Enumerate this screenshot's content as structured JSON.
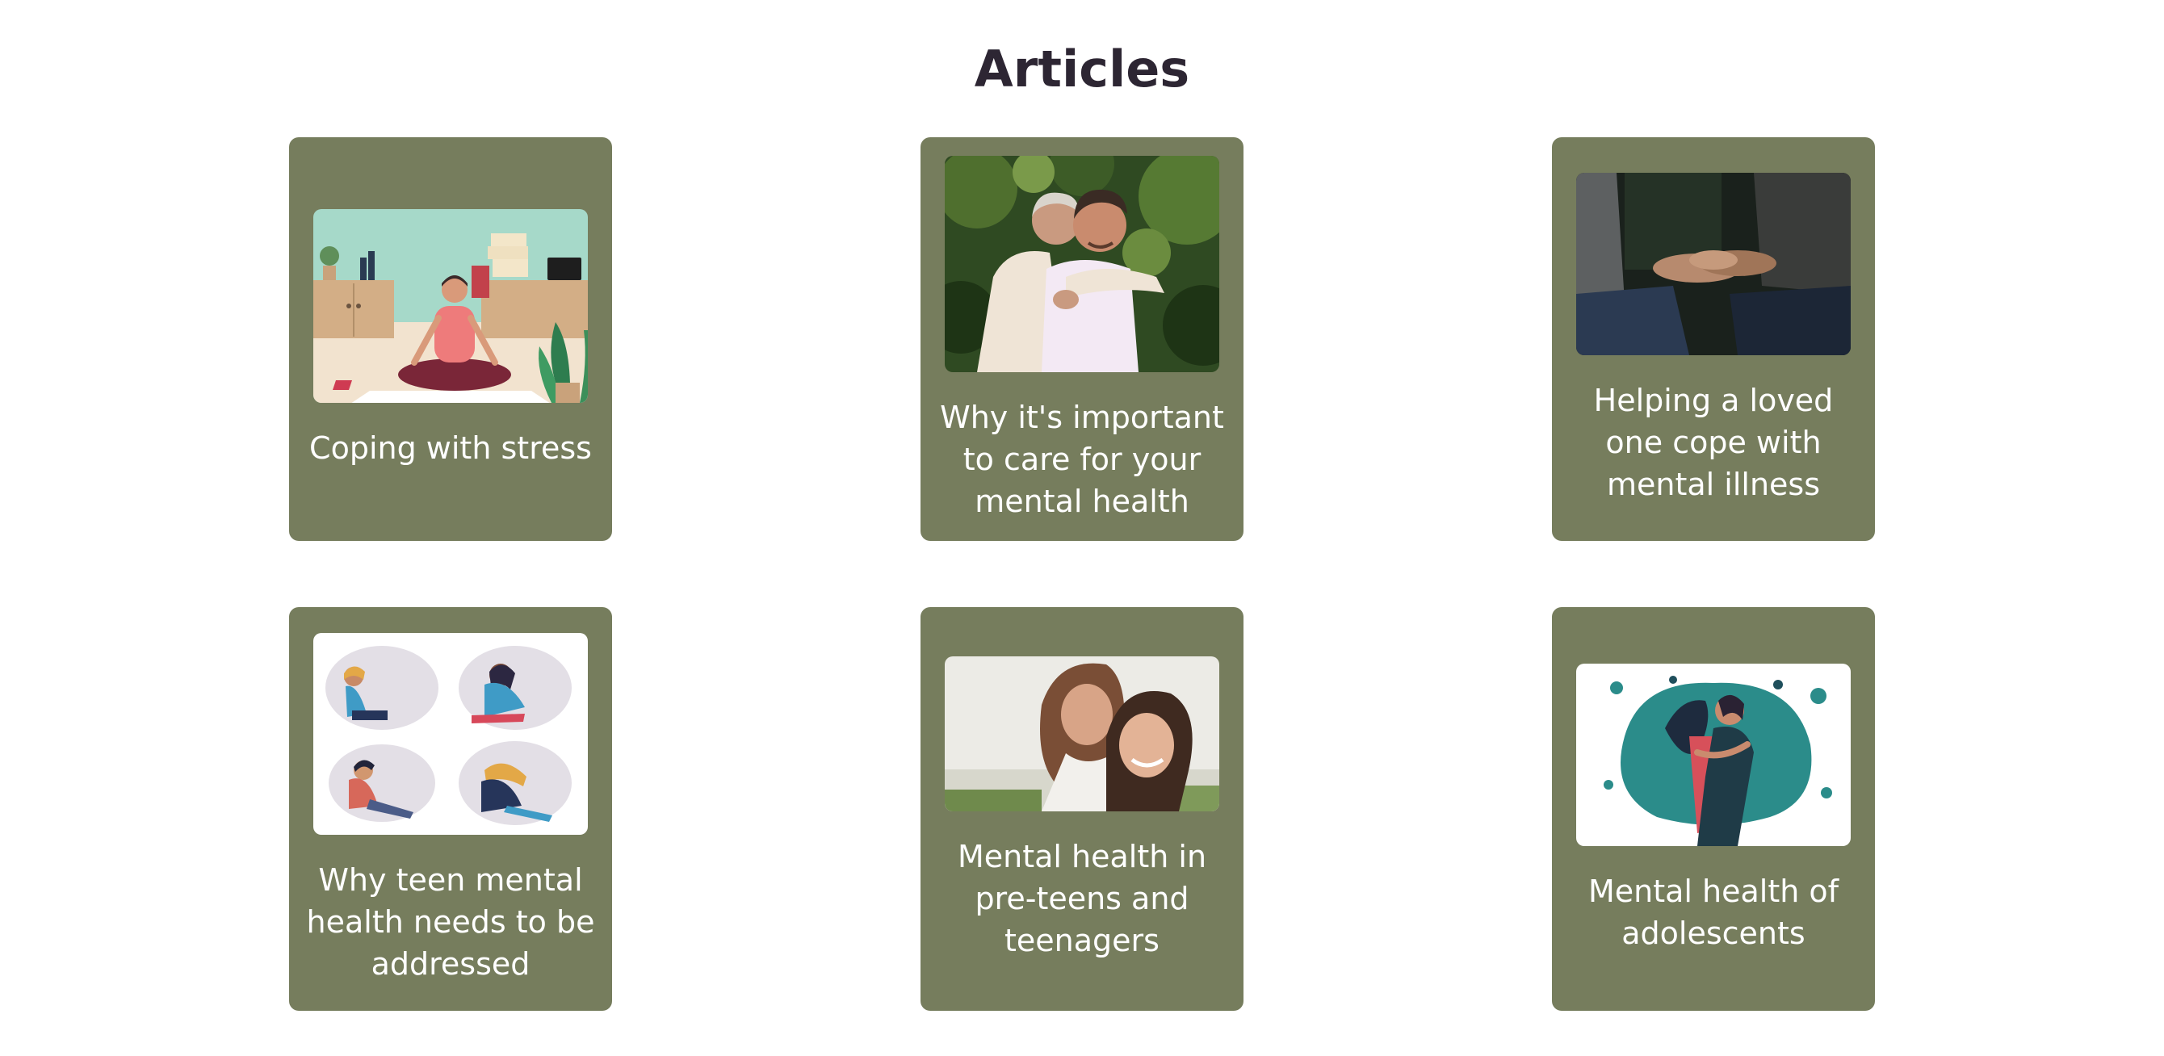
{
  "page": {
    "title": "Articles"
  },
  "colors": {
    "card_background": "#767d5d",
    "title_text": "#2d2633",
    "card_text": "#ffffff"
  },
  "articles": [
    {
      "title": "Coping with stress",
      "image": "woman-meditating-in-office-illustration"
    },
    {
      "title": "Why it's important to care for your mental health",
      "image": "two-men-embracing-photo"
    },
    {
      "title": "Helping a loved one cope with mental illness",
      "image": "holding-hands-photo"
    },
    {
      "title": "Why teen mental health needs to be addressed",
      "image": "four-sad-teens-illustration"
    },
    {
      "title": "Mental health in pre-teens and teenagers",
      "image": "two-smiling-girls-photo"
    },
    {
      "title": "Mental health of adolescents",
      "image": "two-women-hugging-illustration"
    }
  ]
}
